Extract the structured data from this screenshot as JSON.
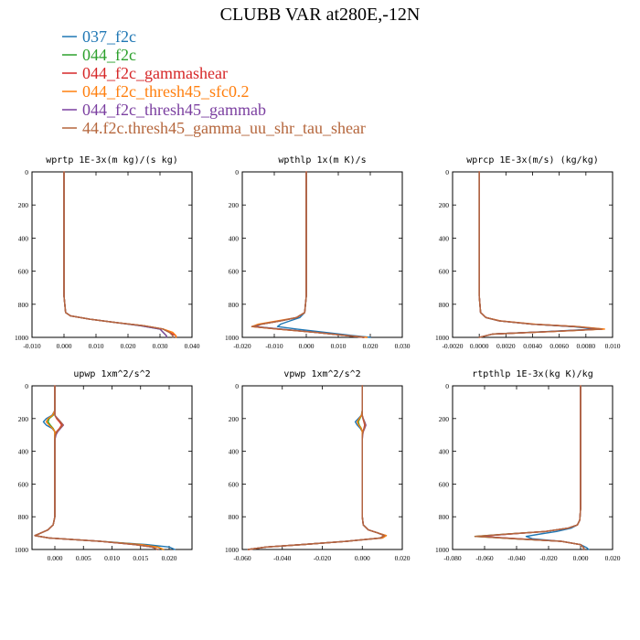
{
  "figure": {
    "title": "CLUBB VAR at280E,-12N",
    "legend": [
      {
        "label": "037_f2c",
        "color": "#1f77b4"
      },
      {
        "label": "044_f2c",
        "color": "#2ca02c"
      },
      {
        "label": "044_f2c_gammashear",
        "color": "#d62728"
      },
      {
        "label": "044_f2c_thresh45_sfc0.2",
        "color": "#ff7f0e"
      },
      {
        "label": "044_f2c_thresh45_gammab",
        "color": "#7b3fa0"
      },
      {
        "label": "44.f2c.thresh45_gamma_uu_shr_tau_shear",
        "color": "#b5663c"
      }
    ]
  },
  "chart_data": [
    {
      "type": "line",
      "title": "wprtp  1E-3x(m kg)/(s kg)",
      "xlim": [
        -0.01,
        0.04
      ],
      "xticks": [
        "-0.010",
        "0.000",
        "0.010",
        "0.020",
        "0.030",
        "0.040"
      ],
      "ylim": [
        1000,
        0
      ],
      "yticks": [
        "0",
        "200",
        "400",
        "600",
        "800",
        "1000"
      ],
      "y": [
        0,
        150,
        300,
        450,
        600,
        750,
        850,
        870,
        890,
        910,
        930,
        950,
        970,
        990,
        1000
      ],
      "series": [
        {
          "color": "#1f77b4",
          "values": [
            0.0,
            0.0,
            0.0,
            0.0,
            0.0,
            0.0,
            0.0005,
            0.002,
            0.008,
            0.016,
            0.025,
            0.031,
            0.033,
            0.034,
            0.034
          ]
        },
        {
          "color": "#2ca02c",
          "values": [
            0.0,
            0.0,
            0.0,
            0.0,
            0.0,
            0.0,
            0.0005,
            0.002,
            0.008,
            0.016,
            0.024,
            0.03,
            0.031,
            0.032,
            0.032
          ]
        },
        {
          "color": "#d62728",
          "values": [
            0.0,
            0.0,
            0.0,
            0.0,
            0.0,
            0.0,
            0.0005,
            0.002,
            0.008,
            0.016,
            0.025,
            0.031,
            0.033,
            0.035,
            0.035
          ]
        },
        {
          "color": "#ff7f0e",
          "values": [
            0.0,
            0.0,
            0.0,
            0.0,
            0.0,
            0.0,
            0.0005,
            0.002,
            0.008,
            0.016,
            0.025,
            0.031,
            0.034,
            0.035,
            0.035
          ]
        },
        {
          "color": "#7b3fa0",
          "values": [
            0.0,
            0.0,
            0.0,
            0.0,
            0.0,
            0.0,
            0.0005,
            0.002,
            0.008,
            0.016,
            0.024,
            0.03,
            0.031,
            0.032,
            0.032
          ]
        },
        {
          "color": "#b5663c",
          "values": [
            0.0,
            0.0,
            0.0,
            0.0,
            0.0,
            0.0,
            0.0005,
            0.002,
            0.008,
            0.016,
            0.025,
            0.031,
            0.033,
            0.034,
            0.034
          ]
        }
      ]
    },
    {
      "type": "line",
      "title": "wpthlp  1x(m K)/s",
      "xlim": [
        -0.02,
        0.03
      ],
      "xticks": [
        "-0.020",
        "-0.010",
        "0.000",
        "0.010",
        "0.020",
        "0.030"
      ],
      "ylim": [
        1000,
        0
      ],
      "yticks": [
        "0",
        "200",
        "400",
        "600",
        "800",
        "1000"
      ],
      "y": [
        0,
        150,
        300,
        450,
        600,
        750,
        850,
        880,
        900,
        920,
        935,
        950,
        970,
        990,
        1000
      ],
      "series": [
        {
          "color": "#1f77b4",
          "values": [
            0.0,
            0.0,
            0.0,
            0.0,
            0.0,
            0.0,
            -0.0005,
            -0.002,
            -0.005,
            -0.008,
            -0.009,
            -0.003,
            0.006,
            0.015,
            0.02
          ]
        },
        {
          "color": "#2ca02c",
          "values": [
            0.0,
            0.0,
            0.0,
            0.0,
            0.0,
            0.0,
            -0.0005,
            -0.003,
            -0.008,
            -0.014,
            -0.016,
            -0.008,
            0.003,
            0.013,
            0.018
          ]
        },
        {
          "color": "#d62728",
          "values": [
            0.0,
            0.0,
            0.0,
            0.0,
            0.0,
            0.0,
            -0.0005,
            -0.003,
            -0.008,
            -0.014,
            -0.017,
            -0.009,
            0.003,
            0.013,
            0.018
          ]
        },
        {
          "color": "#ff7f0e",
          "values": [
            0.0,
            0.0,
            0.0,
            0.0,
            0.0,
            0.0,
            -0.0005,
            -0.003,
            -0.009,
            -0.015,
            -0.017,
            -0.009,
            0.003,
            0.013,
            0.019
          ]
        },
        {
          "color": "#7b3fa0",
          "values": [
            0.0,
            0.0,
            0.0,
            0.0,
            0.0,
            0.0,
            -0.0005,
            -0.003,
            -0.008,
            -0.014,
            -0.016,
            -0.008,
            0.003,
            0.013,
            0.018
          ]
        },
        {
          "color": "#b5663c",
          "values": [
            0.0,
            0.0,
            0.0,
            0.0,
            0.0,
            0.0,
            -0.0005,
            -0.003,
            -0.008,
            -0.014,
            -0.017,
            -0.009,
            0.003,
            0.013,
            0.018
          ]
        }
      ]
    },
    {
      "type": "line",
      "title": "wprcp  1E-3x(m/s) (kg/kg)",
      "xlim": [
        -0.002,
        0.01
      ],
      "xticks": [
        "-0.0020",
        "0.0000",
        "0.0020",
        "0.0040",
        "0.0060",
        "0.0080",
        "0.010"
      ],
      "ylim": [
        1000,
        0
      ],
      "yticks": [
        "0",
        "200",
        "400",
        "600",
        "800",
        "1000"
      ],
      "y": [
        0,
        150,
        300,
        450,
        600,
        750,
        850,
        880,
        900,
        920,
        935,
        950,
        965,
        980,
        1000
      ],
      "series": [
        {
          "color": "#1f77b4",
          "values": [
            0.0,
            0.0,
            0.0,
            0.0,
            0.0,
            0.0,
            0.0001,
            0.0005,
            0.0015,
            0.004,
            0.007,
            0.0088,
            0.005,
            0.001,
            0.0
          ]
        },
        {
          "color": "#2ca02c",
          "values": [
            0.0,
            0.0,
            0.0,
            0.0,
            0.0,
            0.0,
            0.0001,
            0.0005,
            0.0015,
            0.004,
            0.0072,
            0.0092,
            0.0052,
            0.001,
            0.0
          ]
        },
        {
          "color": "#d62728",
          "values": [
            0.0,
            0.0,
            0.0,
            0.0,
            0.0,
            0.0,
            0.0001,
            0.0005,
            0.0015,
            0.004,
            0.0073,
            0.0093,
            0.0053,
            0.001,
            0.0
          ]
        },
        {
          "color": "#ff7f0e",
          "values": [
            0.0,
            0.0,
            0.0,
            0.0,
            0.0,
            0.0,
            0.0001,
            0.0005,
            0.0016,
            0.0042,
            0.0074,
            0.0094,
            0.0054,
            0.001,
            0.0
          ]
        },
        {
          "color": "#7b3fa0",
          "values": [
            0.0,
            0.0,
            0.0,
            0.0,
            0.0,
            0.0,
            0.0001,
            0.0005,
            0.0015,
            0.004,
            0.0072,
            0.0091,
            0.0052,
            0.001,
            0.0
          ]
        },
        {
          "color": "#b5663c",
          "values": [
            0.0,
            0.0,
            0.0,
            0.0,
            0.0,
            0.0,
            0.0001,
            0.0005,
            0.0015,
            0.004,
            0.0073,
            0.0092,
            0.0053,
            0.001,
            0.0
          ]
        }
      ]
    },
    {
      "type": "line",
      "title": "upwp   1xm^2/s^2",
      "xlim": [
        -0.004,
        0.024
      ],
      "xticks": [
        "0.000",
        "0.005",
        "0.010",
        "0.015",
        "0.020"
      ],
      "ylim": [
        1000,
        0
      ],
      "yticks": [
        "0",
        "200",
        "400",
        "600",
        "800",
        "1000"
      ],
      "y": [
        0,
        150,
        180,
        200,
        220,
        240,
        260,
        280,
        300,
        330,
        360,
        400,
        600,
        800,
        850,
        880,
        900,
        915,
        930,
        950,
        970,
        985,
        1000
      ],
      "series": [
        {
          "color": "#1f77b4",
          "values": [
            0.0,
            0.0,
            -0.0005,
            -0.0015,
            -0.002,
            -0.0015,
            -0.0005,
            0.0,
            0.0,
            0.0,
            0.0,
            0.0,
            0.0,
            0.0,
            -0.0003,
            -0.0012,
            -0.0025,
            -0.0035,
            -0.001,
            0.008,
            0.016,
            0.02,
            0.021
          ]
        },
        {
          "color": "#2ca02c",
          "values": [
            0.0,
            0.0,
            -0.0003,
            -0.001,
            -0.0012,
            -0.0008,
            -0.0003,
            0.0,
            0.0,
            0.0,
            0.0,
            0.0,
            0.0,
            0.0,
            -0.0003,
            -0.0012,
            -0.0025,
            -0.0035,
            -0.001,
            0.008,
            0.015,
            0.018,
            0.019
          ]
        },
        {
          "color": "#d62728",
          "values": [
            0.0,
            0.0,
            0.0,
            0.0003,
            0.0008,
            0.0012,
            0.0008,
            0.0003,
            0.0,
            0.0,
            0.0,
            0.0,
            0.0,
            0.0,
            -0.0003,
            -0.0012,
            -0.0025,
            -0.0035,
            -0.001,
            0.008,
            0.014,
            0.017,
            0.018
          ]
        },
        {
          "color": "#ff7f0e",
          "values": [
            0.0,
            0.0,
            -0.0004,
            -0.0012,
            -0.0015,
            -0.001,
            -0.0004,
            0.0,
            0.0,
            0.0,
            0.0,
            0.0,
            0.0,
            0.0,
            -0.0003,
            -0.0012,
            -0.0025,
            -0.0035,
            -0.001,
            0.008,
            0.015,
            0.018,
            0.019
          ]
        },
        {
          "color": "#7b3fa0",
          "values": [
            0.0,
            0.0,
            0.0,
            0.0005,
            0.001,
            0.0015,
            0.001,
            0.0005,
            0.0002,
            0.0,
            0.0,
            0.0,
            0.0,
            0.0,
            -0.0003,
            -0.0012,
            -0.0025,
            -0.0035,
            -0.001,
            0.008,
            0.014,
            0.017,
            0.018
          ]
        },
        {
          "color": "#b5663c",
          "values": [
            0.0,
            0.0,
            0.0,
            0.0004,
            0.001,
            0.0014,
            0.0009,
            0.0004,
            0.0001,
            0.0,
            0.0,
            0.0,
            0.0,
            0.0,
            -0.0003,
            -0.0012,
            -0.0025,
            -0.0035,
            -0.001,
            0.008,
            0.014,
            0.017,
            0.018
          ]
        }
      ]
    },
    {
      "type": "line",
      "title": "vpwp   1xm^2/s^2",
      "xlim": [
        -0.06,
        0.02
      ],
      "xticks": [
        "-0.060",
        "-0.040",
        "-0.020",
        "0.000",
        "0.020"
      ],
      "ylim": [
        1000,
        0
      ],
      "yticks": [
        "0",
        "200",
        "400",
        "600",
        "800",
        "1000"
      ],
      "y": [
        0,
        150,
        180,
        200,
        220,
        240,
        260,
        280,
        300,
        330,
        360,
        400,
        600,
        800,
        850,
        880,
        900,
        915,
        930,
        950,
        970,
        985,
        1000
      ],
      "series": [
        {
          "color": "#1f77b4",
          "values": [
            0.0,
            0.0,
            -0.0005,
            -0.002,
            -0.0035,
            -0.0025,
            -0.001,
            0.0,
            0.0,
            0.0,
            0.0,
            0.0,
            0.0,
            0.0,
            0.0005,
            0.003,
            0.008,
            0.012,
            0.01,
            -0.008,
            -0.03,
            -0.048,
            -0.057
          ]
        },
        {
          "color": "#2ca02c",
          "values": [
            0.0,
            0.0,
            -0.0003,
            -0.0012,
            -0.002,
            -0.0015,
            -0.0005,
            0.0,
            0.0,
            0.0,
            0.0,
            0.0,
            0.0,
            0.0,
            0.0005,
            0.003,
            0.008,
            0.011,
            0.009,
            -0.008,
            -0.03,
            -0.048,
            -0.057
          ]
        },
        {
          "color": "#d62728",
          "values": [
            0.0,
            0.0,
            0.0,
            0.0003,
            0.0008,
            0.0012,
            0.0008,
            0.0003,
            0.0,
            0.0,
            0.0,
            0.0,
            0.0,
            0.0,
            0.0005,
            0.003,
            0.008,
            0.011,
            0.009,
            -0.008,
            -0.03,
            -0.048,
            -0.057
          ]
        },
        {
          "color": "#ff7f0e",
          "values": [
            0.0,
            0.0,
            -0.0004,
            -0.0015,
            -0.0025,
            -0.0018,
            -0.0006,
            0.0,
            0.0,
            0.0,
            0.0,
            0.0,
            0.0,
            0.0,
            0.0005,
            0.003,
            0.008,
            0.012,
            0.01,
            -0.008,
            -0.03,
            -0.048,
            -0.057
          ]
        },
        {
          "color": "#7b3fa0",
          "values": [
            0.0,
            0.0,
            0.0,
            0.0005,
            0.0012,
            0.0018,
            0.0012,
            0.0005,
            0.0002,
            0.0,
            0.0,
            0.0,
            0.0,
            0.0,
            0.0005,
            0.003,
            0.008,
            0.011,
            0.009,
            -0.008,
            -0.03,
            -0.048,
            -0.057
          ]
        },
        {
          "color": "#b5663c",
          "values": [
            0.0,
            0.0,
            0.0,
            0.0004,
            0.001,
            0.0015,
            0.001,
            0.0004,
            0.0001,
            0.0,
            0.0,
            0.0,
            0.0,
            0.0,
            0.0005,
            0.003,
            0.008,
            0.011,
            0.009,
            -0.008,
            -0.03,
            -0.048,
            -0.057
          ]
        }
      ]
    },
    {
      "type": "line",
      "title": "rtpthlp  1E-3x(kg K)/kg",
      "xlim": [
        -0.08,
        0.02
      ],
      "xticks": [
        "-0.080",
        "-0.060",
        "-0.040",
        "-0.020",
        "0.000",
        "0.020"
      ],
      "ylim": [
        1000,
        0
      ],
      "yticks": [
        "0",
        "200",
        "400",
        "600",
        "800",
        "1000"
      ],
      "y": [
        0,
        150,
        300,
        450,
        600,
        750,
        820,
        850,
        870,
        890,
        905,
        920,
        935,
        950,
        970,
        990,
        1000
      ],
      "series": [
        {
          "color": "#1f77b4",
          "values": [
            0.0,
            0.0,
            0.0,
            0.0,
            0.0,
            0.0,
            -0.0005,
            -0.002,
            -0.006,
            -0.015,
            -0.025,
            -0.034,
            -0.03,
            -0.012,
            0.0,
            0.004,
            0.005
          ]
        },
        {
          "color": "#2ca02c",
          "values": [
            0.0,
            0.0,
            0.0,
            0.0,
            0.0,
            0.0,
            -0.0005,
            -0.002,
            -0.008,
            -0.022,
            -0.045,
            -0.066,
            -0.04,
            -0.012,
            0.0,
            0.002,
            0.002
          ]
        },
        {
          "color": "#d62728",
          "values": [
            0.0,
            0.0,
            0.0,
            0.0,
            0.0,
            0.0,
            -0.0005,
            -0.002,
            -0.008,
            -0.022,
            -0.044,
            -0.063,
            -0.038,
            -0.012,
            0.0,
            0.002,
            0.002
          ]
        },
        {
          "color": "#ff7f0e",
          "values": [
            0.0,
            0.0,
            0.0,
            0.0,
            0.0,
            0.0,
            -0.0005,
            -0.002,
            -0.008,
            -0.022,
            -0.044,
            -0.064,
            -0.039,
            -0.012,
            0.0,
            0.002,
            0.002
          ]
        },
        {
          "color": "#7b3fa0",
          "values": [
            0.0,
            0.0,
            0.0,
            0.0,
            0.0,
            0.0,
            -0.0005,
            -0.002,
            -0.008,
            -0.022,
            -0.044,
            -0.064,
            -0.039,
            -0.012,
            0.0,
            0.002,
            0.002
          ]
        },
        {
          "color": "#b5663c",
          "values": [
            0.0,
            0.0,
            0.0,
            0.0,
            0.0,
            0.0,
            -0.0005,
            -0.002,
            -0.008,
            -0.022,
            -0.045,
            -0.066,
            -0.04,
            -0.012,
            0.0,
            0.002,
            0.002
          ]
        }
      ]
    }
  ]
}
